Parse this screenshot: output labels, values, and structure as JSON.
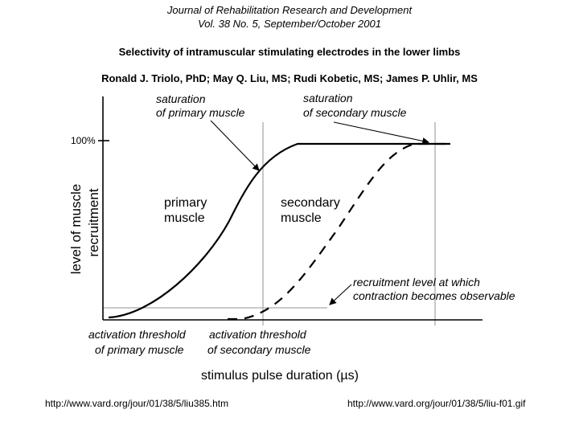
{
  "header": {
    "journal": "Journal of Rehabilitation Research and Development",
    "volume": "Vol. 38 No. 5, September/October 2001",
    "title": "Selectivity of intramuscular stimulating electrodes in the lower limbs",
    "authors": "Ronald J. Triolo, PhD; May Q. Liu, MS; Rudi Kobetic, MS; James P. Uhlir, MS"
  },
  "figure": {
    "y_axis_label": [
      "level of muscle",
      "recruitment"
    ],
    "x_axis_label": "stimulus pulse duration (µs)",
    "y_tick_label": "100%",
    "annotations": {
      "sat_primary": [
        "saturation",
        "of primary muscle"
      ],
      "sat_secondary": [
        "saturation",
        "of secondary muscle"
      ],
      "primary": [
        "primary",
        "muscle"
      ],
      "secondary": [
        "secondary",
        "muscle"
      ],
      "recruit_level": [
        "recruitment level at which",
        "contraction becomes observable"
      ],
      "thr_primary": [
        "activation threshold",
        "of primary muscle"
      ],
      "thr_secondary": [
        "activation threshold",
        "of secondary muscle"
      ]
    },
    "colors": {
      "curve": "#000000",
      "guide": "#aaaaaa"
    }
  },
  "footer": {
    "url_left": "http://www.vard.org/jour/01/38/5/liu385.htm",
    "url_right": "http://www.vard.org/jour/01/38/5/liu-f01.gif"
  }
}
